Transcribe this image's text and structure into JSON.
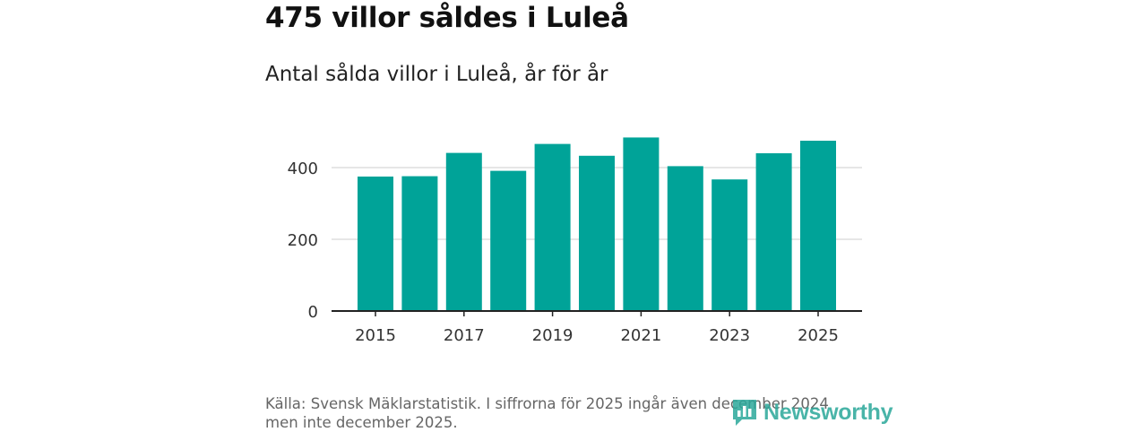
{
  "header": {
    "title": "475 villor såldes i Luleå",
    "subtitle": "Antal sålda villor i Luleå, år för år"
  },
  "chart_data": {
    "type": "bar",
    "categories": [
      "2015",
      "2016",
      "2017",
      "2018",
      "2019",
      "2020",
      "2021",
      "2022",
      "2023",
      "2024",
      "2025"
    ],
    "values": [
      375,
      376,
      441,
      391,
      466,
      433,
      484,
      404,
      367,
      440,
      475
    ],
    "x_tick_labels": [
      "2015",
      "2017",
      "2019",
      "2021",
      "2023",
      "2025"
    ],
    "y_ticks": [
      0,
      200,
      400
    ],
    "ylim": [
      0,
      500
    ],
    "grid": true,
    "bar_color": "#00a398",
    "title": "Antal sålda villor i Luleå, år för år",
    "xlabel": "",
    "ylabel": ""
  },
  "footer": {
    "source_line1": "Källa: Svensk Mäklarstatistik. I siffrorna för 2025 ingår även december 2024",
    "source_line2": "men inte december 2025."
  },
  "logo": {
    "text": "Newsworthy",
    "icon": "bar-chart-speech-icon",
    "color": "#2aa89a"
  }
}
